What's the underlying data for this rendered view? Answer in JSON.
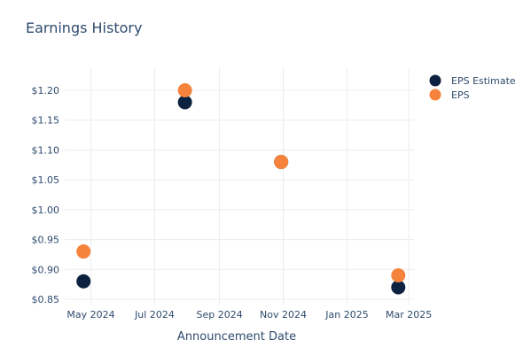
{
  "chart_data": {
    "type": "scatter",
    "title": "Earnings History",
    "xlabel": "Announcement Date",
    "ylabel": "",
    "x_ticks": [
      {
        "date": "2024-05-01",
        "label": "May 2024"
      },
      {
        "date": "2024-07-01",
        "label": "Jul 2024"
      },
      {
        "date": "2024-09-01",
        "label": "Sep 2024"
      },
      {
        "date": "2024-11-01",
        "label": "Nov 2024"
      },
      {
        "date": "2025-01-01",
        "label": "Jan 2025"
      },
      {
        "date": "2025-03-01",
        "label": "Mar 2025"
      }
    ],
    "xlim": [
      "2024-04-06",
      "2025-03-06"
    ],
    "y_ticks": [
      {
        "value": 0.85,
        "label": "$0.85"
      },
      {
        "value": 0.9,
        "label": "$0.90"
      },
      {
        "value": 0.95,
        "label": "$0.95"
      },
      {
        "value": 1.0,
        "label": "$1.00"
      },
      {
        "value": 1.05,
        "label": "$1.05"
      },
      {
        "value": 1.1,
        "label": "$1.10"
      },
      {
        "value": 1.15,
        "label": "$1.15"
      },
      {
        "value": 1.2,
        "label": "$1.20"
      }
    ],
    "ylim": [
      0.85,
      1.2
    ],
    "grid": true,
    "legend_position": "top-right",
    "series": [
      {
        "name": "EPS Estimate",
        "color": "#0d2240",
        "points": [
          {
            "x": "2024-04-24",
            "y": 0.88
          },
          {
            "x": "2024-07-30",
            "y": 1.18
          },
          {
            "x": "2024-10-30",
            "y": 1.08
          },
          {
            "x": "2025-02-19",
            "y": 0.87
          }
        ]
      },
      {
        "name": "EPS",
        "color": "#f5833b",
        "points": [
          {
            "x": "2024-04-24",
            "y": 0.93
          },
          {
            "x": "2024-07-30",
            "y": 1.2
          },
          {
            "x": "2024-10-30",
            "y": 1.08
          },
          {
            "x": "2025-02-19",
            "y": 0.89
          }
        ]
      }
    ]
  }
}
